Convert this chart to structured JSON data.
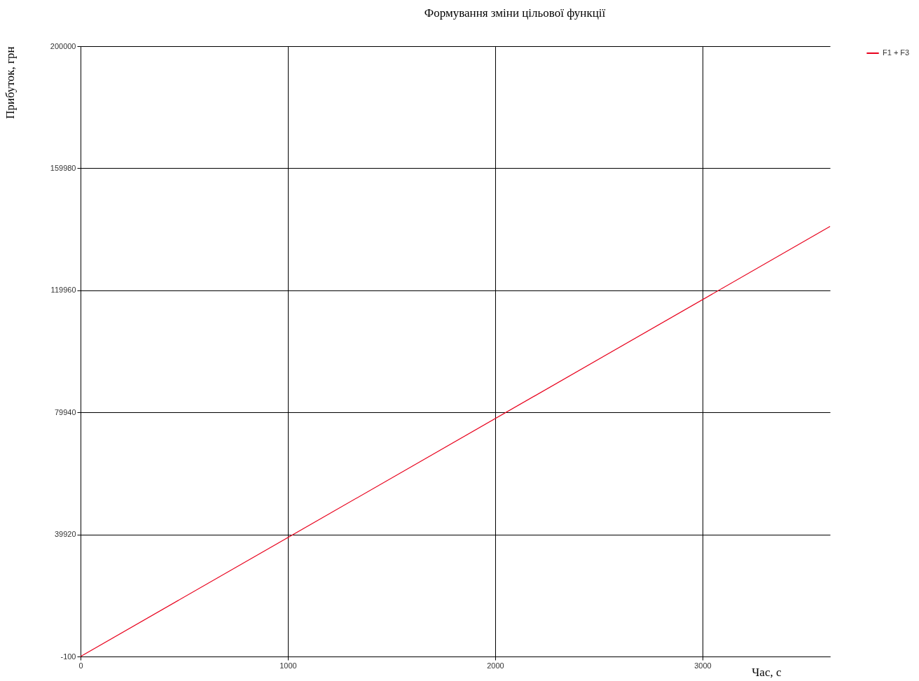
{
  "chart_data": {
    "type": "line",
    "title": "Формування зміни цільової функції",
    "xlabel": "Час, с",
    "ylabel": "Прибуток, грн",
    "x": [
      0,
      3615
    ],
    "series": [
      {
        "name": "F1 + F3",
        "color": "#e8001c",
        "values": [
          -100,
          140900
        ]
      }
    ],
    "xlim": [
      0,
      3615
    ],
    "xticks": [
      0,
      1000,
      2000,
      3000
    ],
    "ylim": [
      -100,
      200000
    ],
    "yticks": [
      -100,
      39920,
      79940,
      119960,
      159980,
      200000
    ],
    "grid": true,
    "legend": "top right",
    "marker": "none",
    "line_style": "solid"
  }
}
